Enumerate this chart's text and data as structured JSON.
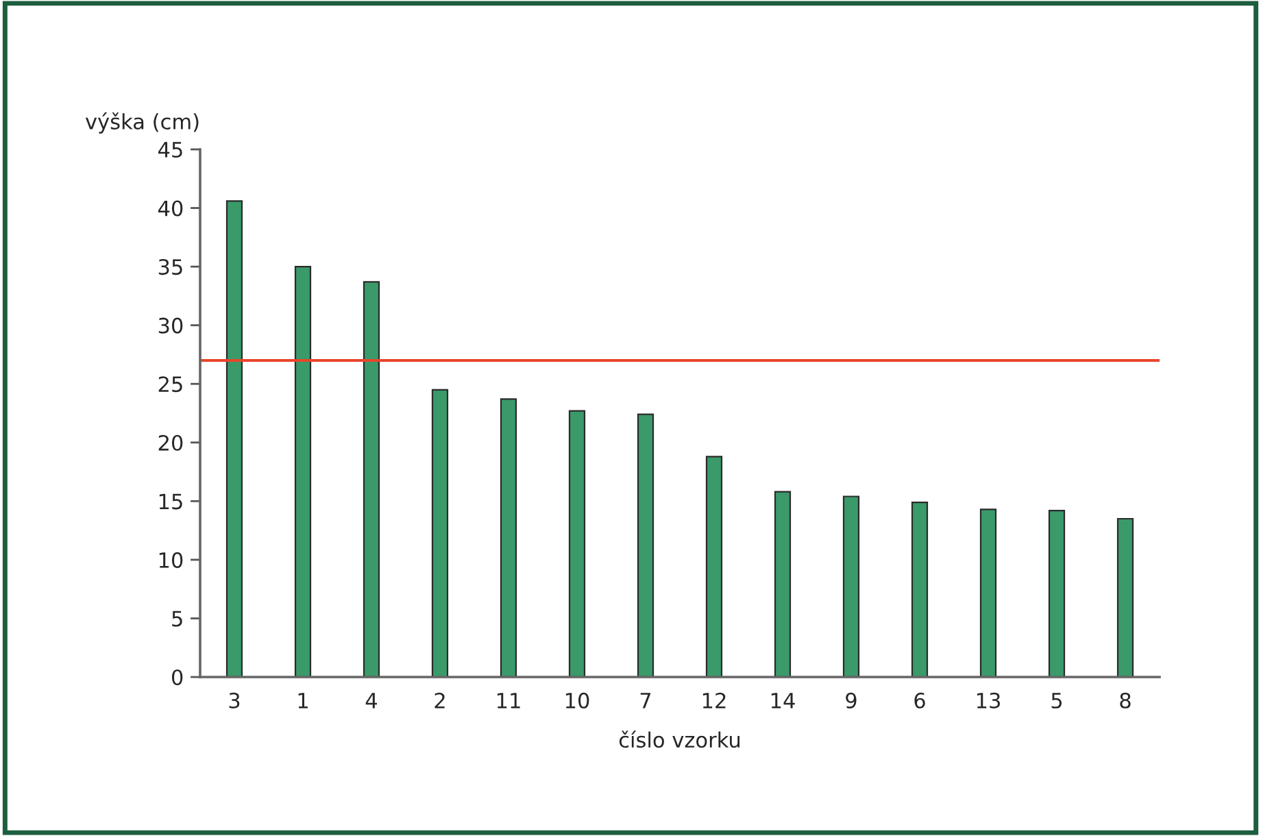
{
  "chart_data": {
    "type": "bar",
    "xlabel": "číslo vzorku",
    "ylabel": "výška (cm)",
    "categories": [
      "3",
      "1",
      "4",
      "2",
      "11",
      "10",
      "7",
      "12",
      "14",
      "9",
      "6",
      "13",
      "5",
      "8"
    ],
    "values": [
      40.6,
      35.0,
      33.7,
      24.5,
      23.7,
      22.7,
      22.4,
      18.8,
      15.8,
      15.4,
      14.9,
      14.3,
      14.2,
      13.5
    ],
    "color": "#3a9a6a",
    "ylim": [
      0,
      45
    ],
    "yticks": [
      0,
      5,
      10,
      15,
      20,
      25,
      30,
      35,
      40,
      45
    ],
    "grid": false,
    "ref_lines": [
      {
        "axis": "y",
        "value": 27.0,
        "color": "#e8452c"
      }
    ]
  }
}
